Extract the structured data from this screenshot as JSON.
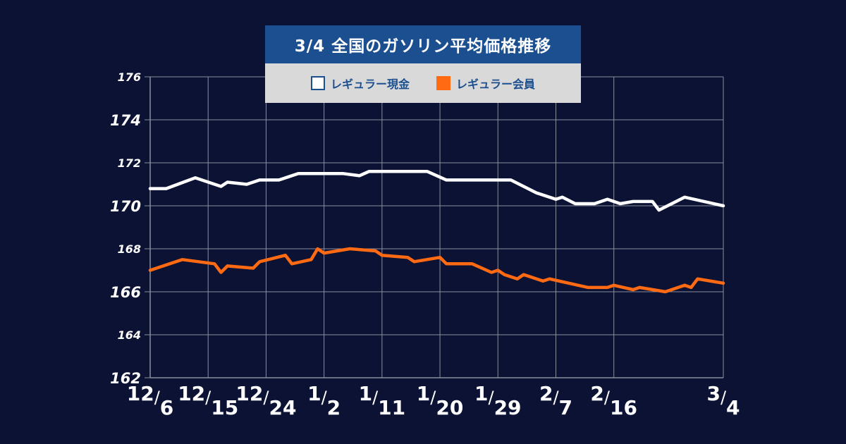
{
  "title": "3/4 全国のガソリン平均価格推移",
  "legend": {
    "cash_label": "レギュラー現金",
    "member_label": "レギュラー会員"
  },
  "colors": {
    "background": "#0b1233",
    "grid": "#8a8f9c",
    "title_bg": "#1b4f8f",
    "legend_bg": "#d9d9d9",
    "cash": "#ffffff",
    "member": "#ff6a13"
  },
  "chart_data": {
    "type": "line",
    "title": "3/4 全国のガソリン平均価格推移",
    "ylim": [
      162,
      176
    ],
    "yticks": [
      176,
      174,
      172,
      170,
      168,
      166,
      164,
      162
    ],
    "x_tick_labels": [
      {
        "m": "12",
        "d": "6"
      },
      {
        "m": "12",
        "d": "15"
      },
      {
        "m": "12",
        "d": "24"
      },
      {
        "m": "1",
        "d": "2"
      },
      {
        "m": "1",
        "d": "11"
      },
      {
        "m": "1",
        "d": "20"
      },
      {
        "m": "1",
        "d": "29"
      },
      {
        "m": "2",
        "d": "7"
      },
      {
        "m": "2",
        "d": "16"
      },
      {
        "m": "3",
        "d": "4"
      }
    ],
    "x_tick_days": [
      0,
      9,
      18,
      27,
      36,
      45,
      54,
      63,
      72,
      89
    ],
    "grid": true,
    "legend_position": "top-center",
    "series": [
      {
        "name": "レギュラー現金",
        "points": [
          [
            0,
            170.8
          ],
          [
            2.5,
            170.8
          ],
          [
            7,
            171.3
          ],
          [
            11,
            170.9
          ],
          [
            12,
            171.1
          ],
          [
            15,
            171.0
          ],
          [
            17,
            171.2
          ],
          [
            20,
            171.2
          ],
          [
            23,
            171.5
          ],
          [
            30,
            171.5
          ],
          [
            32.5,
            171.4
          ],
          [
            34,
            171.6
          ],
          [
            43,
            171.6
          ],
          [
            46,
            171.2
          ],
          [
            56,
            171.2
          ],
          [
            60,
            170.6
          ],
          [
            63,
            170.3
          ],
          [
            64,
            170.4
          ],
          [
            66,
            170.1
          ],
          [
            69,
            170.1
          ],
          [
            71,
            170.3
          ],
          [
            73,
            170.1
          ],
          [
            75,
            170.2
          ],
          [
            78,
            170.2
          ],
          [
            79,
            169.8
          ],
          [
            83,
            170.4
          ],
          [
            89,
            170.0
          ]
        ]
      },
      {
        "name": "レギュラー会員",
        "points": [
          [
            0,
            167.0
          ],
          [
            5,
            167.5
          ],
          [
            10,
            167.3
          ],
          [
            11,
            166.9
          ],
          [
            12,
            167.2
          ],
          [
            16,
            167.1
          ],
          [
            17,
            167.4
          ],
          [
            21,
            167.7
          ],
          [
            22,
            167.3
          ],
          [
            25,
            167.5
          ],
          [
            26,
            168.0
          ],
          [
            27,
            167.8
          ],
          [
            31,
            168.0
          ],
          [
            35,
            167.9
          ],
          [
            36,
            167.7
          ],
          [
            40,
            167.6
          ],
          [
            41,
            167.4
          ],
          [
            45,
            167.6
          ],
          [
            46,
            167.3
          ],
          [
            50,
            167.3
          ],
          [
            53,
            166.9
          ],
          [
            54,
            167.0
          ],
          [
            55,
            166.8
          ],
          [
            57,
            166.6
          ],
          [
            58,
            166.8
          ],
          [
            61,
            166.5
          ],
          [
            62,
            166.6
          ],
          [
            68,
            166.2
          ],
          [
            71,
            166.2
          ],
          [
            72,
            166.3
          ],
          [
            75,
            166.1
          ],
          [
            76,
            166.2
          ],
          [
            80,
            166.0
          ],
          [
            83,
            166.3
          ],
          [
            84,
            166.2
          ],
          [
            85,
            166.6
          ],
          [
            89,
            166.4
          ]
        ]
      }
    ]
  }
}
